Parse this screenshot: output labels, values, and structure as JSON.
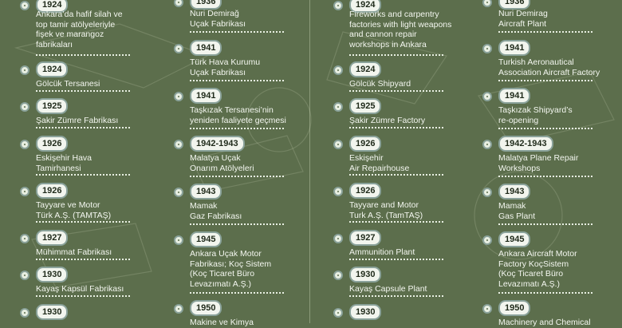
{
  "columns": [
    {
      "id": "tr-left",
      "entries": [
        {
          "year": "1924",
          "label": "Ankara’da hafif silah ve\ntop tamir atölyeleriyle\nfişek ve marangoz\nfabrikaları"
        },
        {
          "year": "1924",
          "label": "Gölcük Tersanesi"
        },
        {
          "year": "1925",
          "label": "Şakir Zümre Fabrikası"
        },
        {
          "year": "1926",
          "label": "Eskişehir Hava\nTamirhanesi"
        },
        {
          "year": "1926",
          "label": "Tayyare ve Motor\nTürk A.Ş. (TAMTAŞ)"
        },
        {
          "year": "1927",
          "label": "Mühimmat Fabrikası"
        },
        {
          "year": "1930",
          "label": "Kayaş Kapsül Fabrikası"
        },
        {
          "year": "1930",
          "label": ""
        }
      ]
    },
    {
      "id": "tr-right",
      "entries": [
        {
          "year": "1936",
          "label": "Nuri Demirağ\nUçak Fabrikası"
        },
        {
          "year": "1941",
          "label": "Türk Hava Kurumu\nUçak Fabrikası"
        },
        {
          "year": "1941",
          "label": "Taşkızak Tersanesi’nin\nyeniden faaliyete geçmesi"
        },
        {
          "year": "1942-1943",
          "label": "Malatya Uçak\nOnarım Atölyeleri"
        },
        {
          "year": "1943",
          "label": "Mamak\nGaz Fabrikası"
        },
        {
          "year": "1945",
          "label": "Ankara Uçak Motor\nFabrikası; Koç Sistem\n(Koç Ticaret Büro\nLevazımatı A.Ş.)"
        },
        {
          "year": "1950",
          "label": "Makine ve Kimya"
        }
      ]
    },
    {
      "id": "en-left",
      "entries": [
        {
          "year": "1924",
          "label": "Fireworks and carpentry\nfactories with light weapons\nand cannon repair\nworkshops in Ankara"
        },
        {
          "year": "1924",
          "label": "Gölcük Shipyard"
        },
        {
          "year": "1925",
          "label": "Şakir Zümre Factory"
        },
        {
          "year": "1926",
          "label": "Eskişehir\nAir Repairhouse"
        },
        {
          "year": "1926",
          "label": "Tayyare and Motor\nTurk A.Ş. (TamTAŞ)"
        },
        {
          "year": "1927",
          "label": "Ammunition Plant"
        },
        {
          "year": "1930",
          "label": "Kayaş Capsule Plant"
        },
        {
          "year": "1930",
          "label": ""
        }
      ]
    },
    {
      "id": "en-right",
      "entries": [
        {
          "year": "1936",
          "label": "Nuri Demirag\nAircraft Plant"
        },
        {
          "year": "1941",
          "label": "Turkish Aeronautical\nAssociation Aircraft Factory"
        },
        {
          "year": "1941",
          "label": "Taşkızak Shipyard’s\nre-opening"
        },
        {
          "year": "1942-1943",
          "label": "Malatya Plane Repair\nWorkshops"
        },
        {
          "year": "1943",
          "label": "Mamak\nGas Plant"
        },
        {
          "year": "1945",
          "label": "Ankara Aircraft Motor\nFactory KoçSistem\n(Koç Ticaret Büro\nLevazımatı A.Ş.)"
        },
        {
          "year": "1950",
          "label": "Machinery and Chemical"
        }
      ]
    }
  ]
}
